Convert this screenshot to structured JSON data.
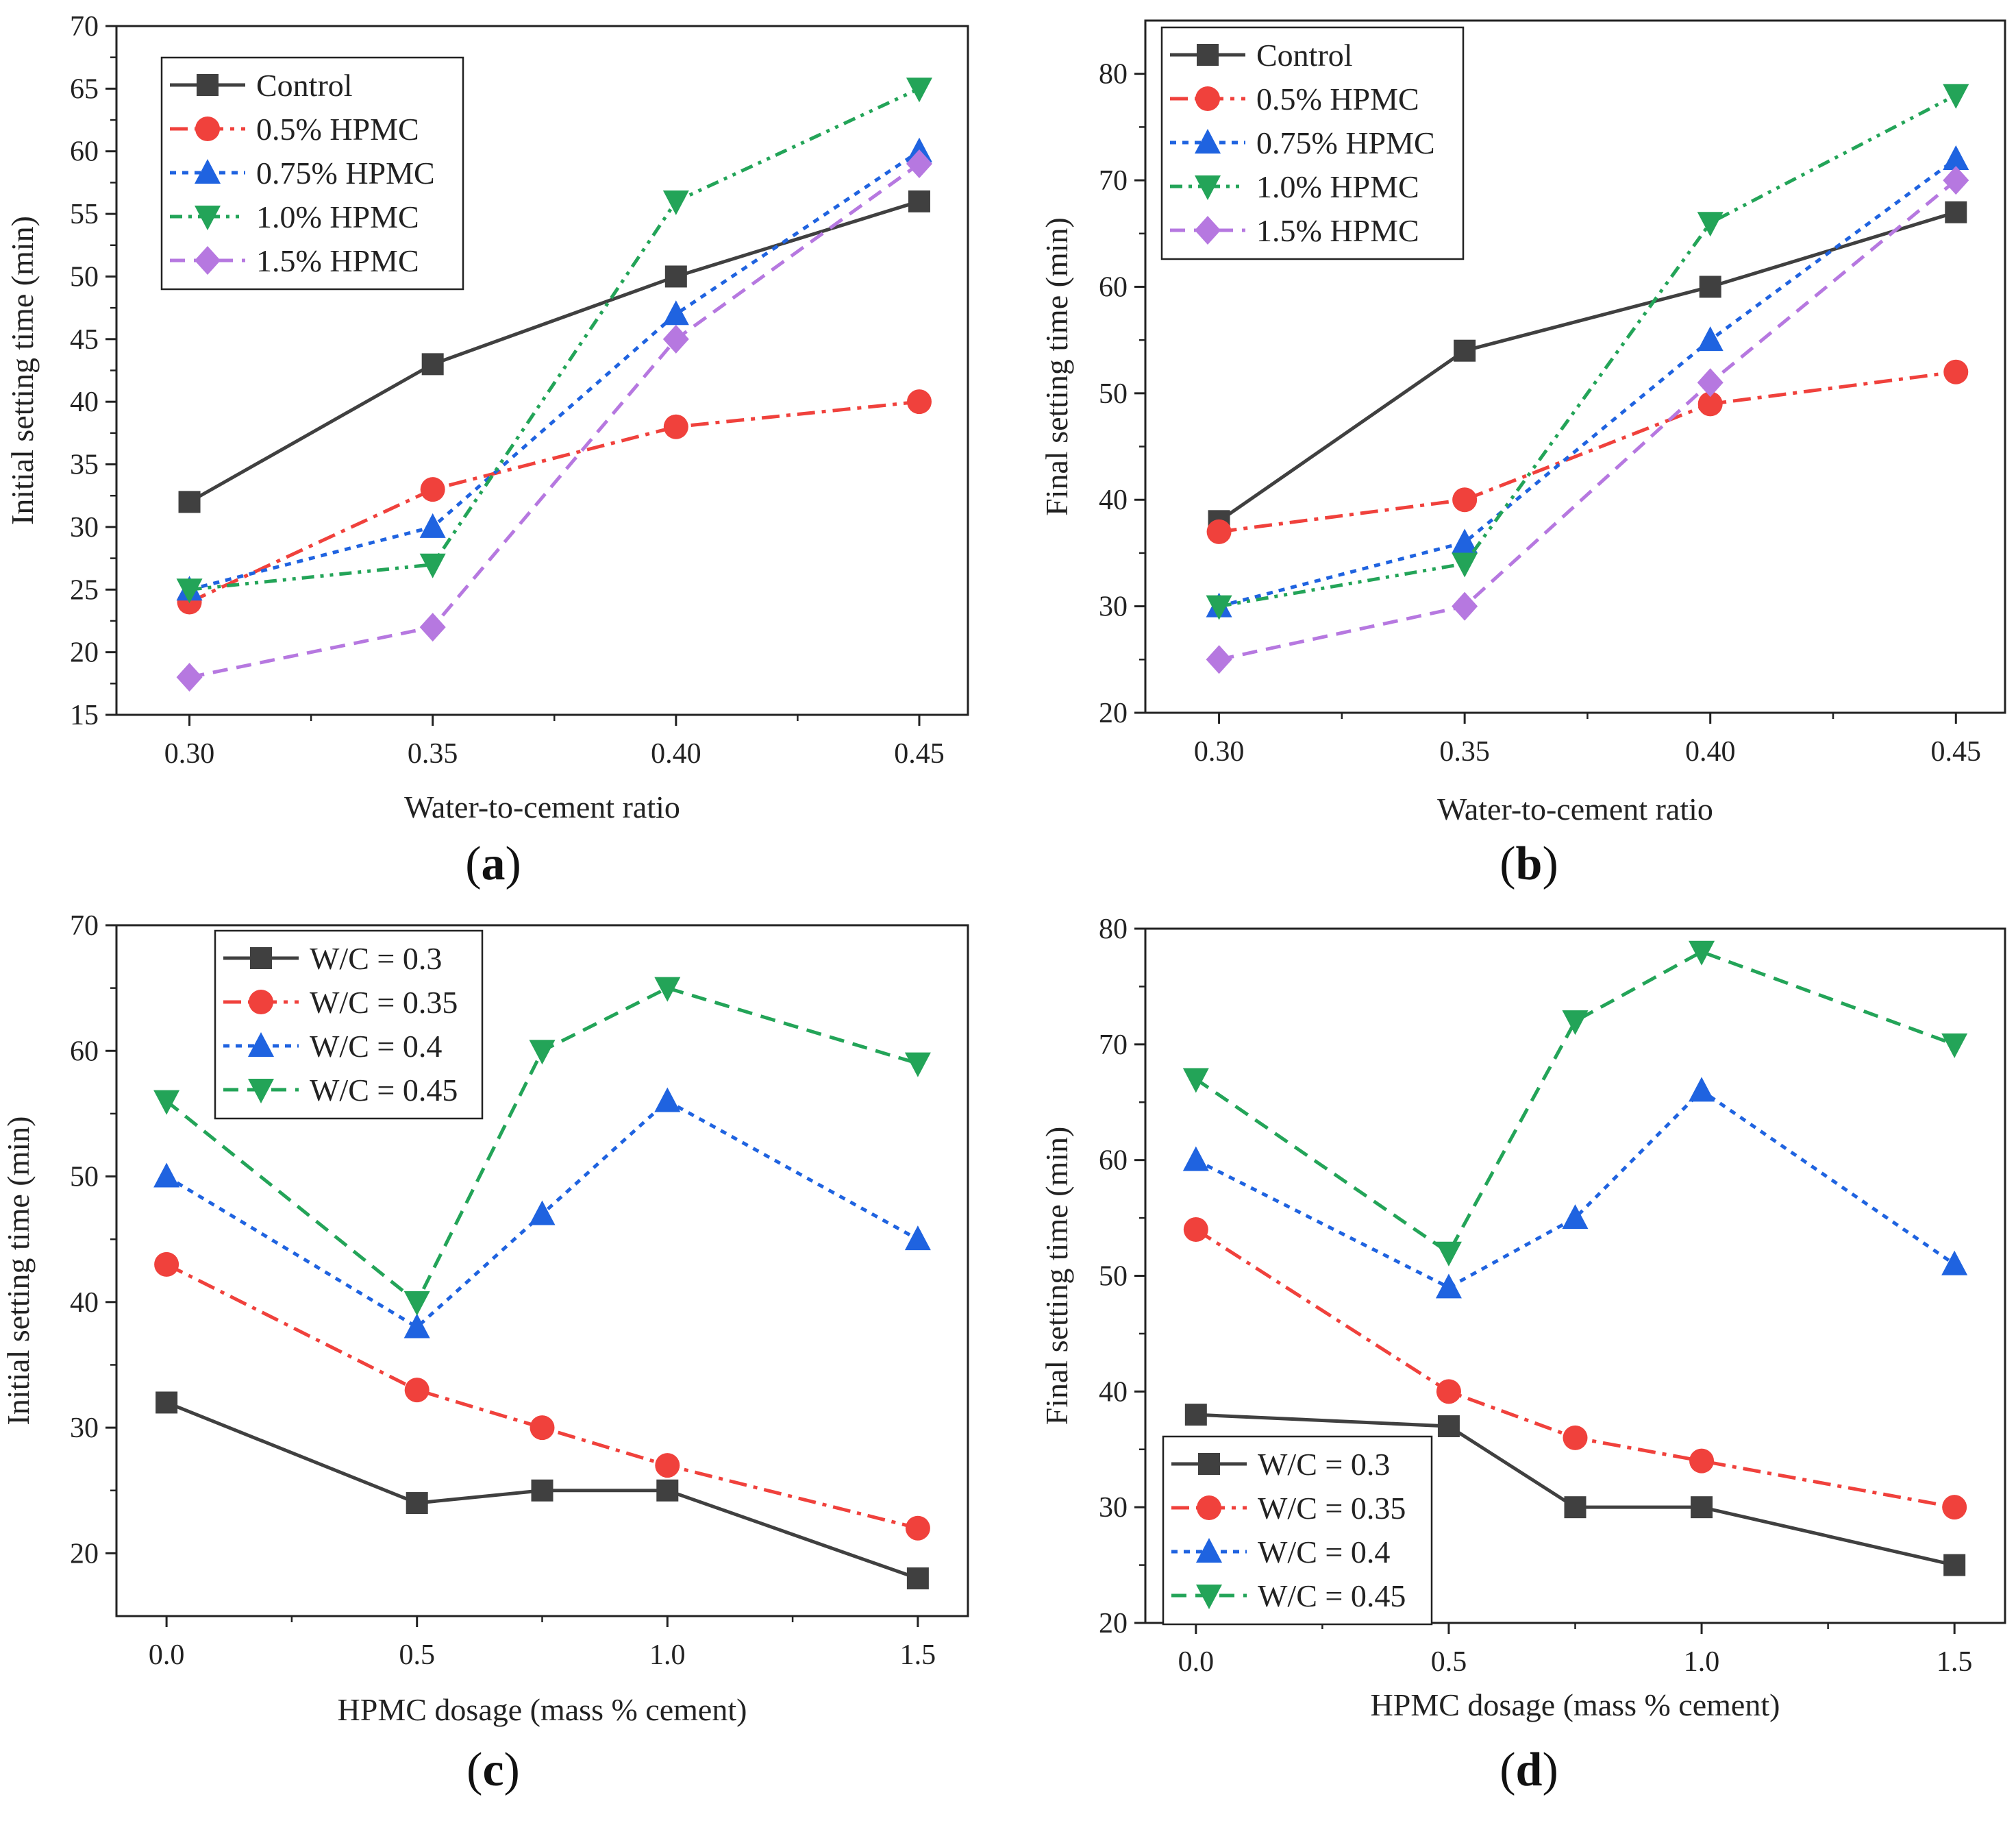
{
  "colors": {
    "Control": "#404040",
    "0.5% HPMC": "#f0413c",
    "0.75% HPMC": "#1f63e0",
    "1.0% HPMC": "#23a458",
    "1.5% HPMC": "#b678e0",
    "W/C = 0.3": "#404040",
    "W/C = 0.35": "#f0413c",
    "W/C = 0.4": "#1f63e0",
    "W/C = 0.45": "#23a458"
  },
  "chart_data": [
    {
      "panel_label": "a",
      "type": "line",
      "xlabel": "Water-to-cement ratio",
      "ylabel": "Initial setting time (min)",
      "x": [
        0.3,
        0.35,
        0.4,
        0.45
      ],
      "xticks": [
        "0.30",
        "0.35",
        "0.40",
        "0.45"
      ],
      "xlim": [
        0.285,
        0.46
      ],
      "ylim": [
        15,
        70
      ],
      "yticks": [
        15,
        20,
        25,
        30,
        35,
        40,
        45,
        50,
        55,
        60,
        65,
        70
      ],
      "legend_position": "top-left",
      "series": [
        {
          "name": "Control",
          "values": [
            32,
            43,
            50,
            56
          ],
          "marker": "square",
          "dash": "solid"
        },
        {
          "name": "0.5% HPMC",
          "values": [
            24,
            33,
            38,
            40
          ],
          "marker": "circle",
          "dash": "dashdot"
        },
        {
          "name": "0.75% HPMC",
          "values": [
            25,
            30,
            47,
            60
          ],
          "marker": "triangle-up",
          "dash": "dot"
        },
        {
          "name": "1.0% HPMC",
          "values": [
            25,
            27,
            56,
            65
          ],
          "marker": "triangle-down",
          "dash": "dashdotdot"
        },
        {
          "name": "1.5% HPMC",
          "values": [
            18,
            22,
            45,
            59
          ],
          "marker": "diamond",
          "dash": "dash"
        }
      ]
    },
    {
      "panel_label": "b",
      "type": "line",
      "xlabel": "Water-to-cement ratio",
      "ylabel": "Final setting time (min)",
      "x": [
        0.3,
        0.35,
        0.4,
        0.45
      ],
      "xticks": [
        "0.30",
        "0.35",
        "0.40",
        "0.45"
      ],
      "xlim": [
        0.285,
        0.46
      ],
      "ylim": [
        20,
        85
      ],
      "yticks": [
        20,
        30,
        40,
        50,
        60,
        70,
        80
      ],
      "legend_position": "top-left",
      "series": [
        {
          "name": "Control",
          "values": [
            38,
            54,
            60,
            67
          ],
          "marker": "square",
          "dash": "solid"
        },
        {
          "name": "0.5% HPMC",
          "values": [
            37,
            40,
            49,
            52
          ],
          "marker": "circle",
          "dash": "dashdot"
        },
        {
          "name": "0.75% HPMC",
          "values": [
            30,
            36,
            55,
            72
          ],
          "marker": "triangle-up",
          "dash": "dot"
        },
        {
          "name": "1.0% HPMC",
          "values": [
            30,
            34,
            66,
            78
          ],
          "marker": "triangle-down",
          "dash": "dashdotdot"
        },
        {
          "name": "1.5% HPMC",
          "values": [
            25,
            30,
            51,
            70
          ],
          "marker": "diamond",
          "dash": "dash"
        }
      ]
    },
    {
      "panel_label": "c",
      "type": "line",
      "xlabel": "HPMC dosage (mass % cement)",
      "ylabel": "Initial setting time (min)",
      "x": [
        0.0,
        0.5,
        0.75,
        1.0,
        1.5
      ],
      "xticks": [
        "0.0",
        "0.5",
        "1.0",
        "1.5"
      ],
      "xtick_values": [
        0.0,
        0.5,
        1.0,
        1.5
      ],
      "xlim": [
        -0.1,
        1.6
      ],
      "ylim": [
        15,
        70
      ],
      "yticks": [
        20,
        30,
        40,
        50,
        60,
        70
      ],
      "legend_position": "top-left",
      "series": [
        {
          "name": "W/C = 0.3",
          "values": [
            32,
            24,
            25,
            25,
            18
          ],
          "marker": "square",
          "dash": "solid"
        },
        {
          "name": "W/C = 0.35",
          "values": [
            43,
            33,
            30,
            27,
            22
          ],
          "marker": "circle",
          "dash": "dashdot"
        },
        {
          "name": "W/C = 0.4",
          "values": [
            50,
            38,
            47,
            56,
            45
          ],
          "marker": "triangle-up",
          "dash": "dot"
        },
        {
          "name": "W/C = 0.45",
          "values": [
            56,
            40,
            60,
            65,
            59
          ],
          "marker": "triangle-down",
          "dash": "dash"
        }
      ]
    },
    {
      "panel_label": "d",
      "type": "line",
      "xlabel": "HPMC dosage (mass % cement)",
      "ylabel": "Final setting time (min)",
      "x": [
        0.0,
        0.5,
        0.75,
        1.0,
        1.5
      ],
      "xticks": [
        "0.0",
        "0.5",
        "1.0",
        "1.5"
      ],
      "xtick_values": [
        0.0,
        0.5,
        1.0,
        1.5
      ],
      "xlim": [
        -0.1,
        1.6
      ],
      "ylim": [
        20,
        80
      ],
      "yticks": [
        20,
        30,
        40,
        50,
        60,
        70,
        80
      ],
      "legend_position": "bottom-left",
      "series": [
        {
          "name": "W/C = 0.3",
          "values": [
            38,
            37,
            30,
            30,
            25
          ],
          "marker": "square",
          "dash": "solid"
        },
        {
          "name": "W/C = 0.35",
          "values": [
            54,
            40,
            36,
            34,
            30
          ],
          "marker": "circle",
          "dash": "dashdot"
        },
        {
          "name": "W/C = 0.4",
          "values": [
            60,
            49,
            55,
            66,
            51
          ],
          "marker": "triangle-up",
          "dash": "dot"
        },
        {
          "name": "W/C = 0.45",
          "values": [
            67,
            52,
            72,
            78,
            70
          ],
          "marker": "triangle-down",
          "dash": "dash"
        }
      ]
    }
  ]
}
